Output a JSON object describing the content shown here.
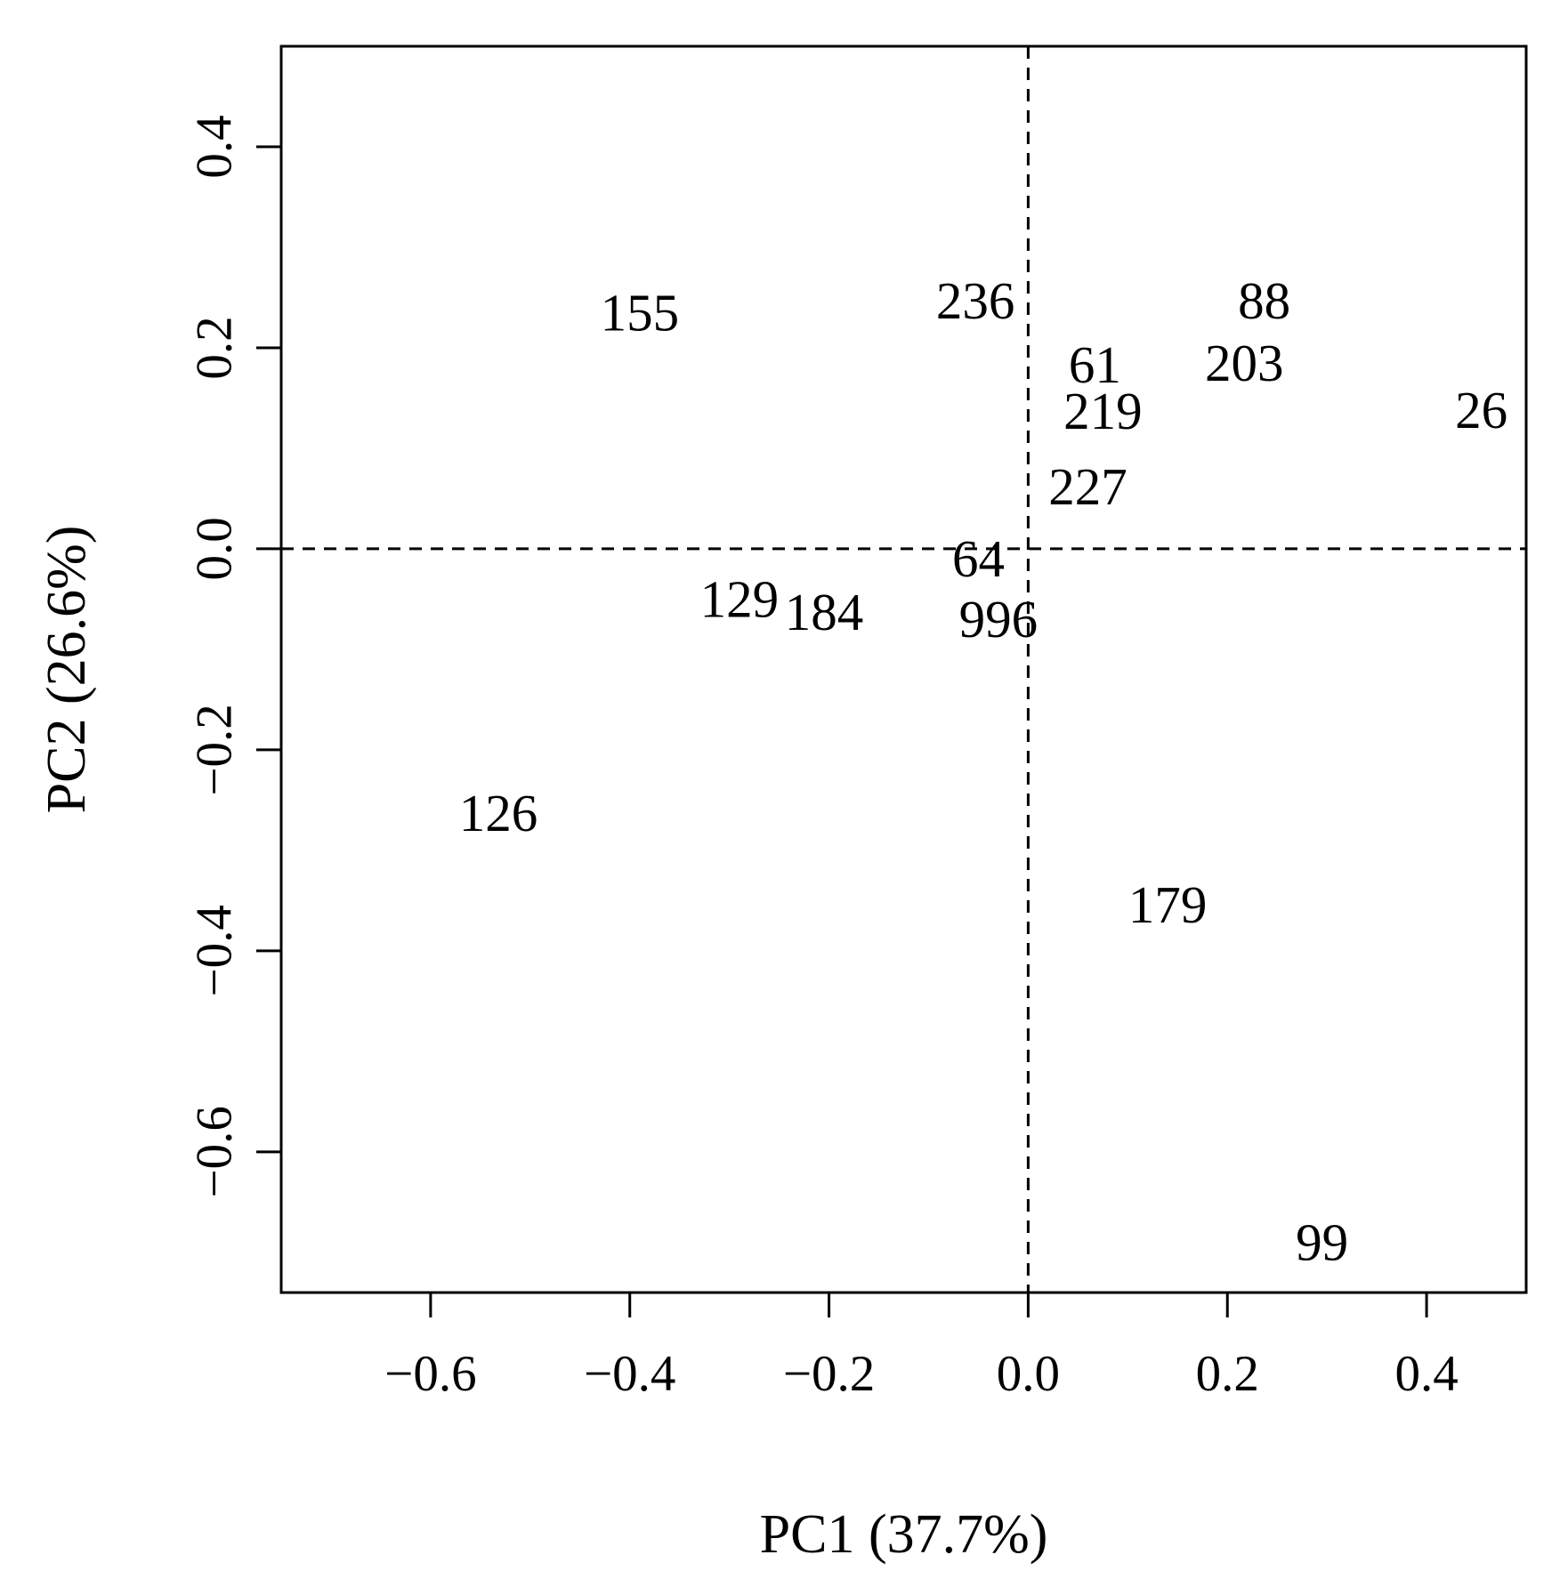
{
  "chart_data": {
    "type": "scatter",
    "xlabel": "PC1 (37.7%)",
    "ylabel": "PC2 (26.6%)",
    "xlim": [
      -0.75,
      0.5
    ],
    "ylim": [
      -0.74,
      0.5
    ],
    "xticks": [
      -0.6,
      -0.4,
      -0.2,
      0.0,
      0.2,
      0.4
    ],
    "xtick_labels": [
      "−0.6",
      "−0.4",
      "−0.2",
      "0.0",
      "0.2",
      "0.4"
    ],
    "yticks": [
      -0.6,
      -0.4,
      -0.2,
      0.0,
      0.2,
      0.4
    ],
    "ytick_labels": [
      "−0.6",
      "−0.4",
      "−0.2",
      "0.0",
      "0.2",
      "0.4"
    ],
    "reference_lines": {
      "x": 0.0,
      "y": 0.0,
      "style": "dashed"
    },
    "grid": false,
    "marker": "text labels",
    "points": [
      {
        "label": "155",
        "x": -0.39,
        "y": 0.235
      },
      {
        "label": "236",
        "x": -0.053,
        "y": 0.247
      },
      {
        "label": "88",
        "x": 0.237,
        "y": 0.247
      },
      {
        "label": "61",
        "x": 0.067,
        "y": 0.183
      },
      {
        "label": "203",
        "x": 0.217,
        "y": 0.185
      },
      {
        "label": "219",
        "x": 0.075,
        "y": 0.137
      },
      {
        "label": "26",
        "x": 0.455,
        "y": 0.138
      },
      {
        "label": "227",
        "x": 0.06,
        "y": 0.062
      },
      {
        "label": "64",
        "x": -0.05,
        "y": -0.01
      },
      {
        "label": "129",
        "x": -0.29,
        "y": -0.05
      },
      {
        "label": "184",
        "x": -0.205,
        "y": -0.063
      },
      {
        "label": "996",
        "x": -0.03,
        "y": -0.07
      },
      {
        "label": "126",
        "x": -0.532,
        "y": -0.263
      },
      {
        "label": "179",
        "x": 0.14,
        "y": -0.354
      },
      {
        "label": "99",
        "x": 0.295,
        "y": -0.69
      }
    ]
  }
}
